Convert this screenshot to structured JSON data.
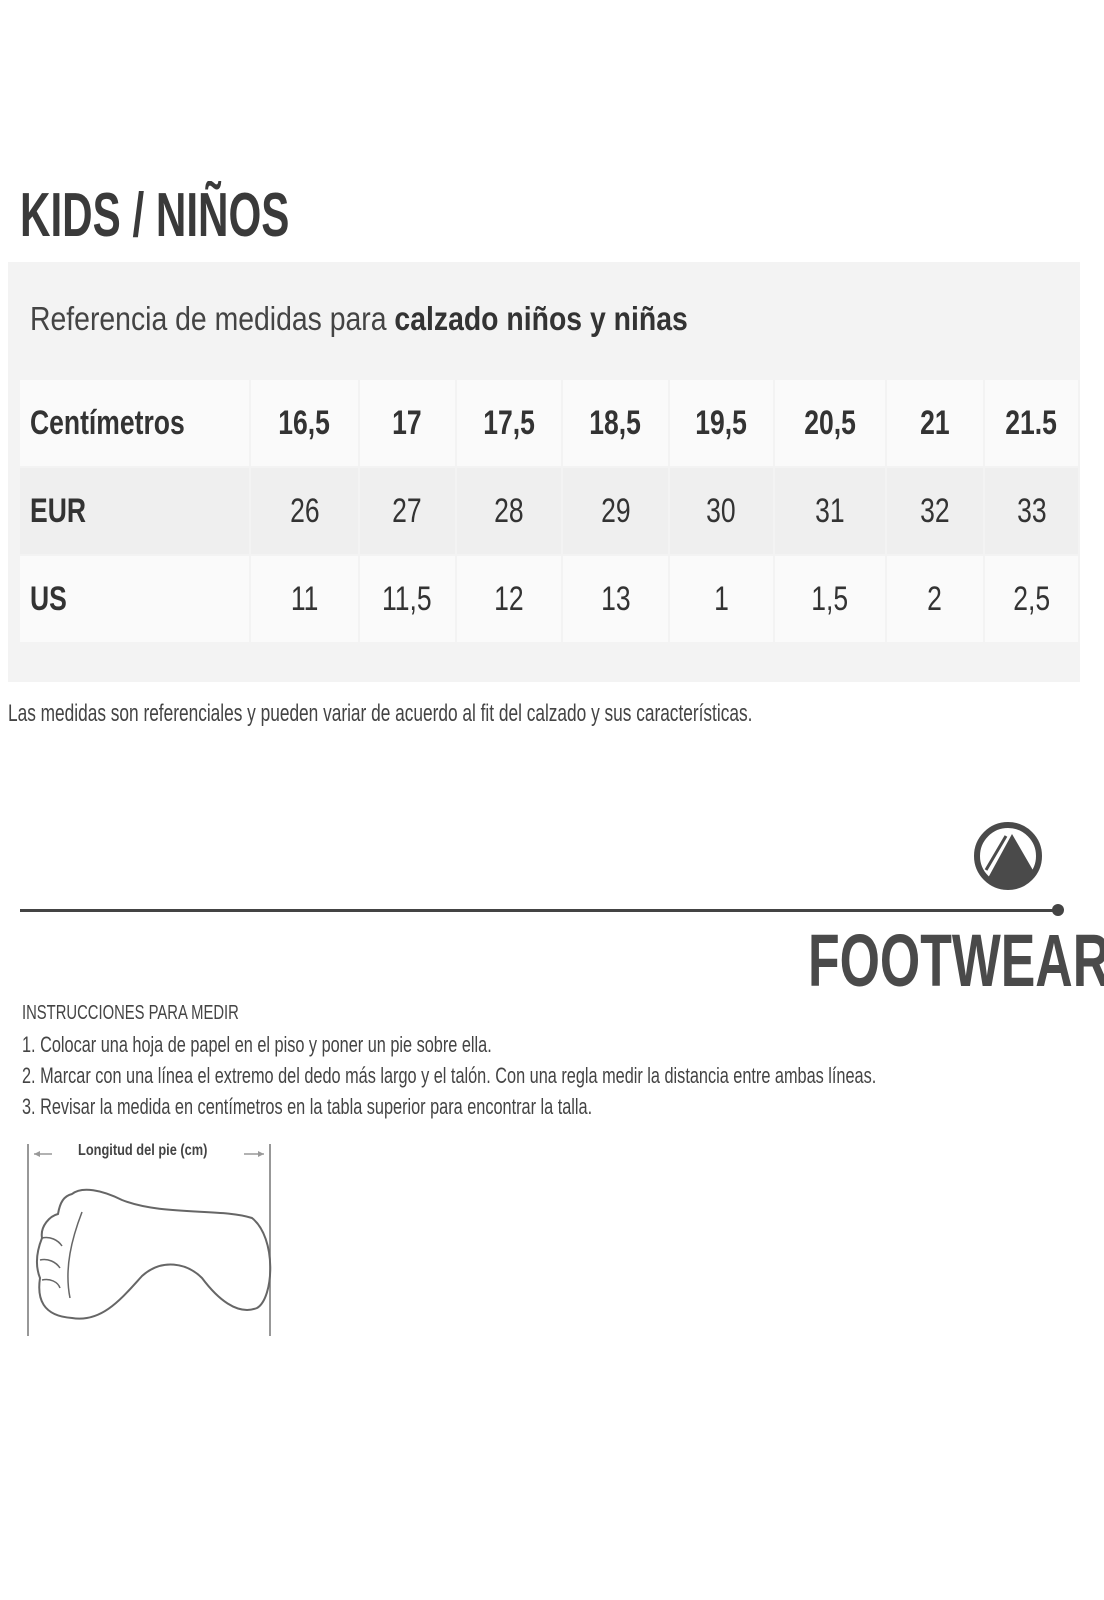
{
  "title": "KIDS / NIÑOS",
  "subtitle": {
    "regular": "Referencia de medidas para ",
    "bold": "calzado niños y niñas"
  },
  "table": {
    "rows": [
      {
        "label": "Centímetros",
        "values": [
          "16,5",
          "17",
          "17,5",
          "18,5",
          "19,5",
          "20,5",
          "21",
          "21.5"
        ]
      },
      {
        "label": "EUR",
        "values": [
          "26",
          "27",
          "28",
          "29",
          "30",
          "31",
          "32",
          "33"
        ]
      },
      {
        "label": "US",
        "values": [
          "11",
          "11,5",
          "12",
          "13",
          "1",
          "1,5",
          "2",
          "2,5"
        ]
      }
    ]
  },
  "note": "Las medidas son referenciales y pueden variar de acuerdo al fit del calzado y sus características.",
  "brand": {
    "name": "FOOTWEAR",
    "logo_icon": "mountain-circle-icon",
    "color": "#4a4a4a"
  },
  "instructions": {
    "title": "INSTRUCCIONES PARA MEDIR",
    "steps": [
      "1. Colocar una hoja de papel en el piso y poner un pie sobre ella.",
      "2. Marcar con una línea el extremo del dedo más largo y el talón. Con una regla medir la distancia entre ambas líneas.",
      "3. Revisar la medida en centímetros en la tabla superior para encontrar la talla."
    ]
  },
  "diagram": {
    "label": "Longitud del pie (cm)",
    "icon": "foot-outline-icon"
  }
}
